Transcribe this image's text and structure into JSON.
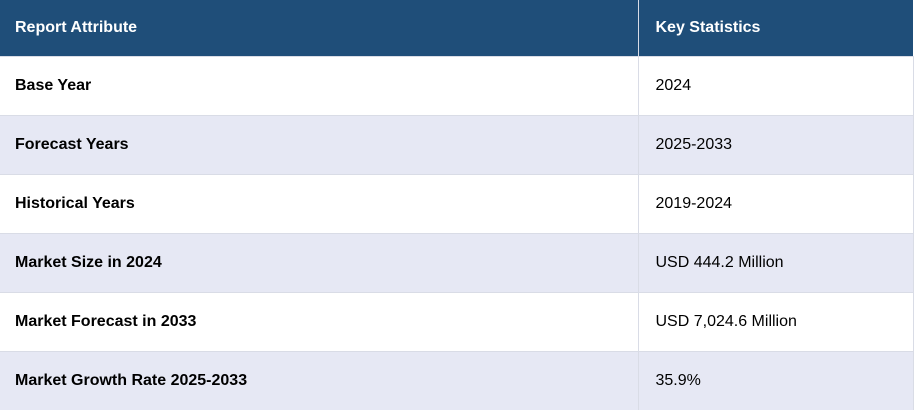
{
  "table": {
    "headers": {
      "attribute": "Report Attribute",
      "statistics": "Key Statistics"
    },
    "rows": [
      {
        "attribute": "Base Year",
        "value": "2024"
      },
      {
        "attribute": "Forecast Years",
        "value": "2025-2033"
      },
      {
        "attribute": "Historical Years",
        "value": "2019-2024"
      },
      {
        "attribute": "Market Size in 2024",
        "value": "USD 444.2 Million"
      },
      {
        "attribute": "Market Forecast in 2033",
        "value": "USD 7,024.6 Million"
      },
      {
        "attribute": "Market Growth Rate 2025-2033",
        "value": "35.9%"
      }
    ]
  }
}
